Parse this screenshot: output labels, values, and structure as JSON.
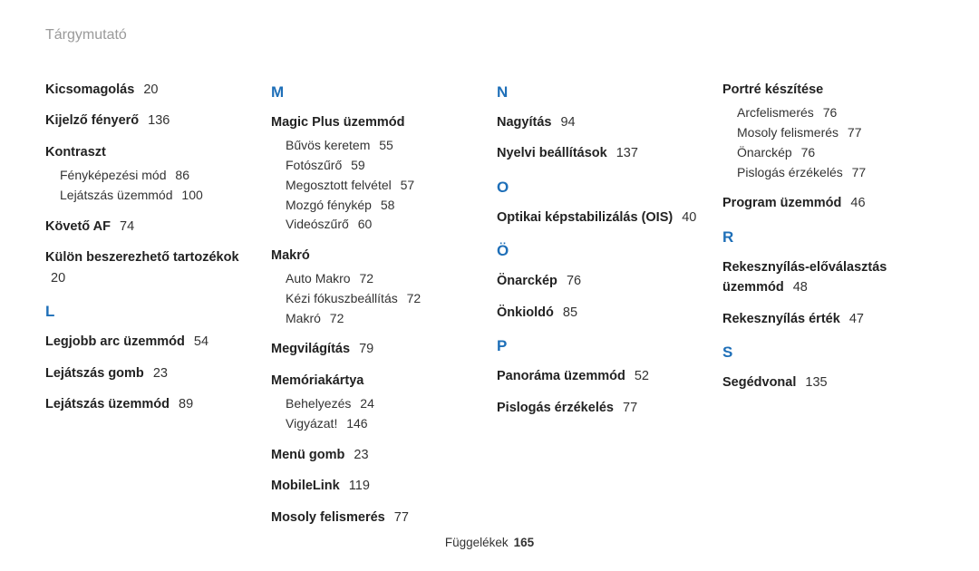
{
  "title": "Tárgymutató",
  "footer": {
    "label": "Függelékek",
    "page": "165"
  },
  "columns": [
    {
      "pre": [
        {
          "label": "Kicsomagolás",
          "page": "20"
        },
        {
          "label": "Kijelző fényerő",
          "page": "136"
        },
        {
          "label": "Kontraszt",
          "subs": [
            {
              "label": "Fényképezési mód",
              "page": "86"
            },
            {
              "label": "Lejátszás üzemmód",
              "page": "100"
            }
          ]
        },
        {
          "label": "Követő AF",
          "page": "74"
        },
        {
          "label": "Külön beszerezhető tartozékok",
          "page": "20"
        }
      ],
      "groups": [
        {
          "letter": "L",
          "entries": [
            {
              "label": "Legjobb arc üzemmód",
              "page": "54"
            },
            {
              "label": "Lejátszás gomb",
              "page": "23"
            },
            {
              "label": "Lejátszás üzemmód",
              "page": "89"
            }
          ]
        }
      ]
    },
    {
      "pre": [],
      "groups": [
        {
          "letter": "M",
          "entries": [
            {
              "label": "Magic Plus üzemmód",
              "subs": [
                {
                  "label": "Bűvös keretem",
                  "page": "55"
                },
                {
                  "label": "Fotószűrő",
                  "page": "59"
                },
                {
                  "label": "Megosztott felvétel",
                  "page": "57"
                },
                {
                  "label": "Mozgó fénykép",
                  "page": "58"
                },
                {
                  "label": "Videószűrő",
                  "page": "60"
                }
              ]
            },
            {
              "label": "Makró",
              "subs": [
                {
                  "label": "Auto Makro",
                  "page": "72"
                },
                {
                  "label": "Kézi fókuszbeállítás",
                  "page": "72"
                },
                {
                  "label": "Makró",
                  "page": "72"
                }
              ]
            },
            {
              "label": "Megvilágítás",
              "page": "79"
            },
            {
              "label": "Memóriakártya",
              "subs": [
                {
                  "label": "Behelyezés",
                  "page": "24"
                },
                {
                  "label": "Vigyázat!",
                  "page": "146"
                }
              ]
            },
            {
              "label": "Menü gomb",
              "page": "23"
            },
            {
              "label": "MobileLink",
              "page": "119"
            },
            {
              "label": "Mosoly felismerés",
              "page": "77"
            }
          ]
        }
      ]
    },
    {
      "pre": [],
      "groups": [
        {
          "letter": "N",
          "entries": [
            {
              "label": "Nagyítás",
              "page": "94"
            },
            {
              "label": "Nyelvi beállítások",
              "page": "137"
            }
          ]
        },
        {
          "letter": "O",
          "entries": [
            {
              "label": "Optikai képstabilizálás (OIS)",
              "page": "40"
            }
          ]
        },
        {
          "letter": "Ö",
          "entries": [
            {
              "label": "Önarckép",
              "page": "76"
            },
            {
              "label": "Önkioldó",
              "page": "85"
            }
          ]
        },
        {
          "letter": "P",
          "entries": [
            {
              "label": "Panoráma üzemmód",
              "page": "52"
            },
            {
              "label": "Pislogás érzékelés",
              "page": "77"
            }
          ]
        }
      ]
    },
    {
      "pre": [
        {
          "label": "Portré készítése",
          "subs": [
            {
              "label": "Arcfelismerés",
              "page": "76"
            },
            {
              "label": "Mosoly felismerés",
              "page": "77"
            },
            {
              "label": "Önarckép",
              "page": "76"
            },
            {
              "label": "Pislogás érzékelés",
              "page": "77"
            }
          ]
        },
        {
          "label": "Program üzemmód",
          "page": "46"
        }
      ],
      "groups": [
        {
          "letter": "R",
          "entries": [
            {
              "label": "Rekesznyílás-előválasztás üzemmód",
              "page": "48"
            },
            {
              "label": "Rekesznyílás érték",
              "page": "47"
            }
          ]
        },
        {
          "letter": "S",
          "entries": [
            {
              "label": "Segédvonal",
              "page": "135"
            }
          ]
        }
      ]
    }
  ]
}
